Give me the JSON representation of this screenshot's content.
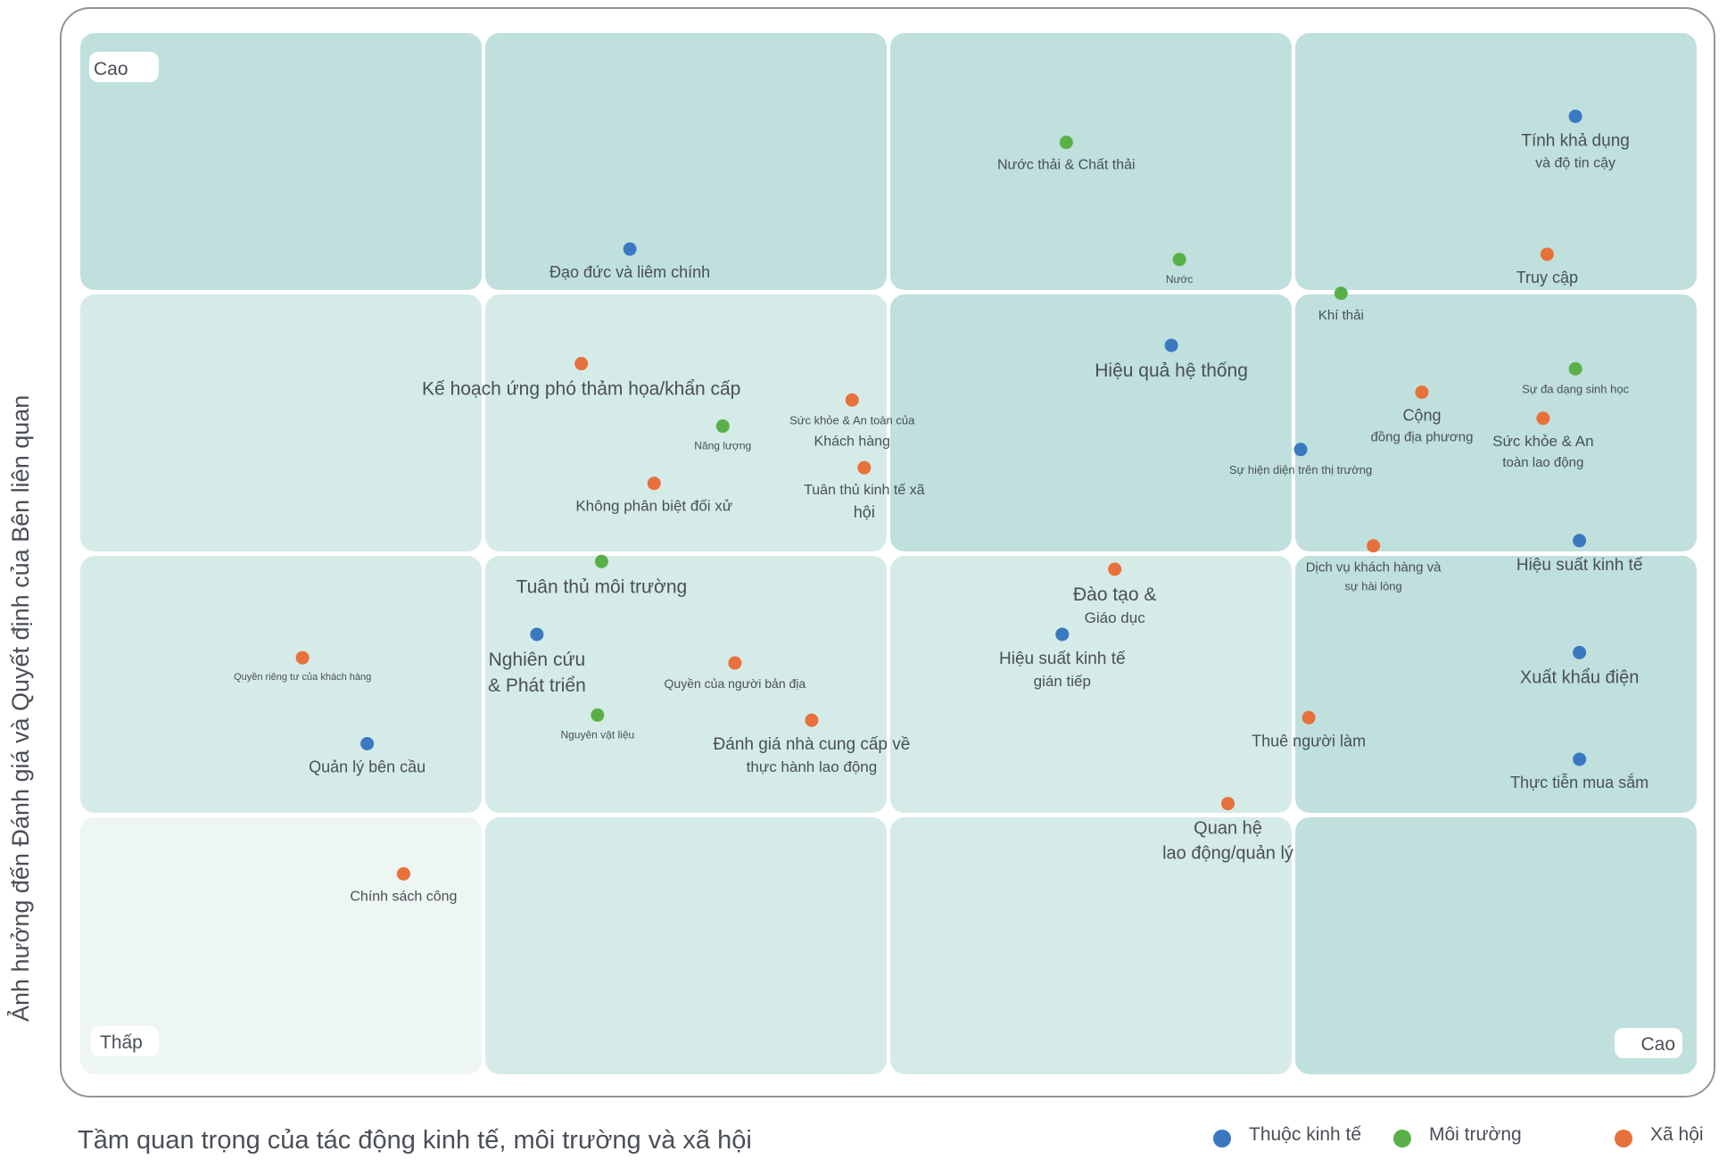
{
  "chart_data": {
    "type": "scatter",
    "title": "",
    "xlabel": "Tầm quan trọng của tác động kinh tế, môi trường và xã hội",
    "ylabel": "Ảnh hưởng đến Đánh giá và Quyết định của Bên liên quan",
    "xlim": [
      0,
      4
    ],
    "ylim": [
      0,
      4
    ],
    "grid": "4x4 materiality matrix",
    "corner_labels": {
      "y_high": "Cao",
      "origin_low": "Thấp",
      "x_high": "Cao"
    },
    "legend_position": "bottom-right",
    "categories": [
      {
        "key": "econ",
        "name": "Thuộc kinh tế",
        "color": "#3a78c2"
      },
      {
        "key": "env",
        "name": "Môi trường",
        "color": "#5ab048"
      },
      {
        "key": "soc",
        "name": "Xã hội",
        "color": "#e8703a"
      }
    ],
    "points": [
      {
        "label": "Tính khả dụng",
        "label2": "và độ tin cậy",
        "cat": "econ",
        "x": 3.7,
        "y": 3.68
      },
      {
        "label": "Đạo đức và liêm chính",
        "label2": "",
        "cat": "econ",
        "x": 1.36,
        "y": 3.17
      },
      {
        "label": "Hiệu quả hệ thống",
        "label2": "",
        "cat": "econ",
        "x": 2.7,
        "y": 2.8
      },
      {
        "label": "Sự hiện diện trên thị trường",
        "label2": "",
        "cat": "econ",
        "x": 3.02,
        "y": 2.4
      },
      {
        "label": "Hiệu suất kinh tế",
        "label2": "",
        "cat": "econ",
        "x": 3.71,
        "y": 2.05
      },
      {
        "label": "Nghiên cứu",
        "label2": "& Phát triển",
        "cat": "econ",
        "x": 1.13,
        "y": 1.69
      },
      {
        "label": "Hiệu suất kinh tế",
        "label2": "gián tiếp",
        "cat": "econ",
        "x": 2.43,
        "y": 1.69
      },
      {
        "label": "Xuất khẩu điện",
        "label2": "",
        "cat": "econ",
        "x": 3.71,
        "y": 1.62
      },
      {
        "label": "Quản lý bên cầu",
        "label2": "",
        "cat": "econ",
        "x": 0.71,
        "y": 1.27
      },
      {
        "label": "Thực tiễn mua sắm",
        "label2": "",
        "cat": "econ",
        "x": 3.71,
        "y": 1.21
      },
      {
        "label": "Nước thải & Chất thải",
        "label2": "",
        "cat": "env",
        "x": 2.44,
        "y": 3.58
      },
      {
        "label": "Nước",
        "label2": "",
        "cat": "env",
        "x": 2.72,
        "y": 3.13
      },
      {
        "label": "Khí thải",
        "label2": "",
        "cat": "env",
        "x": 3.12,
        "y": 3.0
      },
      {
        "label": "Sự đa dạng sinh học",
        "label2": "",
        "cat": "env",
        "x": 3.7,
        "y": 2.71
      },
      {
        "label": "Năng lượng",
        "label2": "",
        "cat": "env",
        "x": 1.59,
        "y": 2.49
      },
      {
        "label": "Tuân thủ môi trường",
        "label2": "",
        "cat": "env",
        "x": 1.29,
        "y": 1.97
      },
      {
        "label": "Nguyên vật liệu",
        "label2": "",
        "cat": "env",
        "x": 1.28,
        "y": 1.38
      },
      {
        "label": "Truy cập",
        "label2": "",
        "cat": "soc",
        "x": 3.63,
        "y": 3.15
      },
      {
        "label": "Kế hoạch ứng phó thảm họa/khẩn cấp",
        "label2": "",
        "cat": "soc",
        "x": 1.24,
        "y": 2.73
      },
      {
        "label": "Cộng",
        "label2": "đồng địa phương",
        "cat": "soc",
        "x": 3.32,
        "y": 2.62
      },
      {
        "label": "Sức khỏe & An toàn của",
        "label2": "Khách hàng",
        "cat": "soc",
        "x": 1.91,
        "y": 2.59
      },
      {
        "label": "Sức khỏe & An",
        "label2": "toàn lao động",
        "cat": "soc",
        "x": 3.62,
        "y": 2.52
      },
      {
        "label": "Tuân thủ kinh tế xã",
        "label2": "hội",
        "cat": "soc",
        "x": 1.94,
        "y": 2.33
      },
      {
        "label": "Không phân biệt đối xử",
        "label2": "",
        "cat": "soc",
        "x": 1.42,
        "y": 2.27
      },
      {
        "label": "Dịch vụ khách hàng và",
        "label2": "sự hài lòng",
        "cat": "soc",
        "x": 3.2,
        "y": 2.03
      },
      {
        "label": "Đào tạo &",
        "label2": "Giáo dục",
        "cat": "soc",
        "x": 2.56,
        "y": 1.94
      },
      {
        "label": "Quyền riêng tư của khách hàng",
        "label2": "",
        "cat": "soc",
        "x": 0.55,
        "y": 1.6
      },
      {
        "label": "Quyền của người bản địa",
        "label2": "",
        "cat": "soc",
        "x": 1.62,
        "y": 1.58
      },
      {
        "label": "Đánh giá nhà cung cấp về",
        "label2": "thực hành lao động",
        "cat": "soc",
        "x": 1.81,
        "y": 1.36
      },
      {
        "label": "Thuê người làm",
        "label2": "",
        "cat": "soc",
        "x": 3.04,
        "y": 1.37
      },
      {
        "label": "Quan hệ",
        "label2": "lao động/quản lý",
        "cat": "soc",
        "x": 2.84,
        "y": 1.04
      },
      {
        "label": "Chính sách công",
        "label2": "",
        "cat": "soc",
        "x": 0.8,
        "y": 0.77
      }
    ]
  }
}
